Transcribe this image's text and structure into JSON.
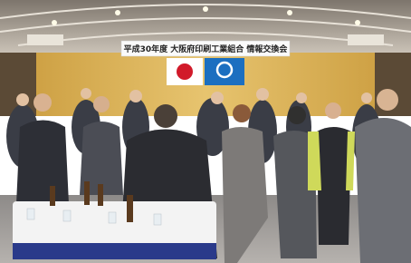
{
  "banner": {
    "text": "平成30年度 大阪府印刷工業組合 情報交換会"
  }
}
